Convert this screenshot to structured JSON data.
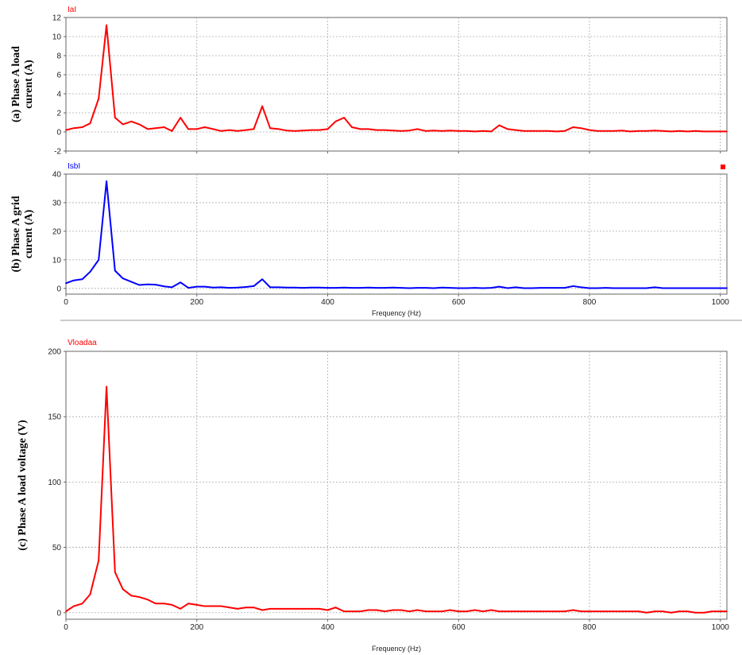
{
  "chart_data": [
    {
      "type": "line",
      "series_name": "IaI",
      "color": "#ff0000",
      "ylabel_lines": [
        "(a) Phase A load",
        "curent (A)"
      ],
      "xlim": [
        0,
        1010
      ],
      "ylim": [
        -2,
        12
      ],
      "yticks": [
        -2,
        0,
        2,
        4,
        6,
        8,
        10,
        12
      ],
      "xticks": [
        0,
        200,
        400,
        600,
        800,
        1000
      ],
      "grid": true,
      "show_xlabel": false,
      "series": [
        {
          "name": "IaI",
          "x": [
            0,
            12,
            25,
            37,
            50,
            62,
            75,
            87,
            100,
            112,
            125,
            137,
            150,
            162,
            175,
            187,
            200,
            212,
            225,
            237,
            250,
            262,
            275,
            287,
            300,
            312,
            325,
            337,
            350,
            362,
            375,
            387,
            400,
            412,
            425,
            437,
            450,
            462,
            475,
            487,
            500,
            512,
            525,
            537,
            550,
            562,
            575,
            587,
            600,
            612,
            625,
            637,
            650,
            662,
            675,
            687,
            700,
            712,
            725,
            737,
            750,
            762,
            775,
            787,
            800,
            812,
            825,
            837,
            850,
            862,
            875,
            887,
            900,
            912,
            925,
            937,
            950,
            962,
            975,
            987,
            1000,
            1010
          ],
          "y": [
            0.2,
            0.4,
            0.5,
            0.9,
            3.5,
            11.2,
            1.5,
            0.8,
            1.1,
            0.8,
            0.3,
            0.4,
            0.5,
            0.1,
            1.5,
            0.3,
            0.3,
            0.5,
            0.3,
            0.1,
            0.2,
            0.1,
            0.2,
            0.3,
            2.7,
            0.4,
            0.3,
            0.15,
            0.1,
            0.15,
            0.2,
            0.2,
            0.3,
            1.1,
            1.5,
            0.5,
            0.3,
            0.3,
            0.2,
            0.2,
            0.15,
            0.1,
            0.15,
            0.3,
            0.1,
            0.15,
            0.1,
            0.15,
            0.1,
            0.1,
            0.05,
            0.1,
            0.05,
            0.7,
            0.3,
            0.2,
            0.1,
            0.1,
            0.1,
            0.1,
            0.05,
            0.1,
            0.5,
            0.4,
            0.2,
            0.1,
            0.1,
            0.1,
            0.15,
            0.05,
            0.1,
            0.1,
            0.15,
            0.1,
            0.05,
            0.1,
            0.05,
            0.1,
            0.05,
            0.05,
            0.05,
            0.05
          ]
        }
      ]
    },
    {
      "type": "line",
      "series_name": "IsbI",
      "color": "#0000ff",
      "ylabel_lines": [
        "(b) Phase A grid",
        "curent (A)"
      ],
      "xlim": [
        0,
        1010
      ],
      "ylim": [
        -2,
        40
      ],
      "yticks": [
        0,
        10,
        20,
        30,
        40
      ],
      "xticks": [
        0,
        200,
        400,
        600,
        800,
        1000
      ],
      "grid": true,
      "show_xlabel": true,
      "xlabel": "Frequency (Hz)",
      "series": [
        {
          "name": "IsbI",
          "x": [
            0,
            12,
            25,
            37,
            50,
            62,
            75,
            87,
            100,
            112,
            125,
            137,
            150,
            162,
            175,
            187,
            200,
            212,
            225,
            237,
            250,
            262,
            275,
            287,
            300,
            312,
            325,
            337,
            350,
            362,
            375,
            387,
            400,
            412,
            425,
            437,
            450,
            462,
            475,
            487,
            500,
            512,
            525,
            537,
            550,
            562,
            575,
            587,
            600,
            612,
            625,
            637,
            650,
            662,
            675,
            687,
            700,
            712,
            725,
            737,
            750,
            762,
            775,
            787,
            800,
            812,
            825,
            837,
            850,
            862,
            875,
            887,
            900,
            912,
            925,
            937,
            950,
            962,
            975,
            987,
            1000,
            1010
          ],
          "y": [
            1.8,
            2.8,
            3.2,
            5.8,
            10,
            37.5,
            6.2,
            3.5,
            2.3,
            1.2,
            1.4,
            1.3,
            0.7,
            0.4,
            2.1,
            0.2,
            0.6,
            0.6,
            0.3,
            0.4,
            0.2,
            0.3,
            0.5,
            0.8,
            3.2,
            0.4,
            0.4,
            0.3,
            0.3,
            0.2,
            0.3,
            0.3,
            0.2,
            0.2,
            0.3,
            0.2,
            0.2,
            0.3,
            0.2,
            0.2,
            0.3,
            0.2,
            0.1,
            0.2,
            0.2,
            0.1,
            0.3,
            0.2,
            0.1,
            0.1,
            0.2,
            0.1,
            0.2,
            0.6,
            0.1,
            0.4,
            0.1,
            0.1,
            0.2,
            0.2,
            0.2,
            0.2,
            0.8,
            0.4,
            0.1,
            0.1,
            0.2,
            0.1,
            0.1,
            0.1,
            0.1,
            0.1,
            0.4,
            0.1,
            0.1,
            0.1,
            0.1,
            0.1,
            0.1,
            0.1,
            0.1,
            0.1
          ]
        }
      ]
    },
    {
      "type": "line",
      "series_name": "Vloadaa",
      "color": "#ff0000",
      "ylabel_lines": [
        "(c) Phase A load voltage (V)"
      ],
      "xlim": [
        0,
        1010
      ],
      "ylim": [
        -5,
        200
      ],
      "yticks": [
        0,
        50,
        100,
        150,
        200
      ],
      "xticks": [
        0,
        200,
        400,
        600,
        800,
        1000
      ],
      "grid": true,
      "show_xlabel": true,
      "xlabel": "Frequency (Hz)",
      "series": [
        {
          "name": "Vloadaa",
          "x": [
            0,
            12,
            25,
            37,
            50,
            62,
            75,
            87,
            100,
            112,
            125,
            137,
            150,
            162,
            175,
            187,
            200,
            212,
            225,
            237,
            250,
            262,
            275,
            287,
            300,
            312,
            325,
            337,
            350,
            362,
            375,
            387,
            400,
            412,
            425,
            437,
            450,
            462,
            475,
            487,
            500,
            512,
            525,
            537,
            550,
            562,
            575,
            587,
            600,
            612,
            625,
            637,
            650,
            662,
            675,
            687,
            700,
            712,
            725,
            737,
            750,
            762,
            775,
            787,
            800,
            812,
            825,
            837,
            850,
            862,
            875,
            887,
            900,
            912,
            925,
            937,
            950,
            962,
            975,
            987,
            1000,
            1010
          ],
          "y": [
            1,
            5,
            7,
            14,
            40,
            173,
            31,
            18,
            13,
            12,
            10,
            7,
            7,
            6,
            3,
            7,
            6,
            5,
            5,
            5,
            4,
            3,
            4,
            4,
            2,
            3,
            3,
            3,
            3,
            3,
            3,
            3,
            2,
            4,
            1,
            1,
            1,
            2,
            2,
            1,
            2,
            2,
            1,
            2,
            1,
            1,
            1,
            2,
            1,
            1,
            2,
            1,
            2,
            1,
            1,
            1,
            1,
            1,
            1,
            1,
            1,
            1,
            2,
            1,
            1,
            1,
            1,
            1,
            1,
            1,
            1,
            0,
            1,
            1,
            0,
            1,
            1,
            0,
            0,
            1,
            1,
            1
          ]
        }
      ]
    }
  ],
  "marker_color": "#ff0000"
}
